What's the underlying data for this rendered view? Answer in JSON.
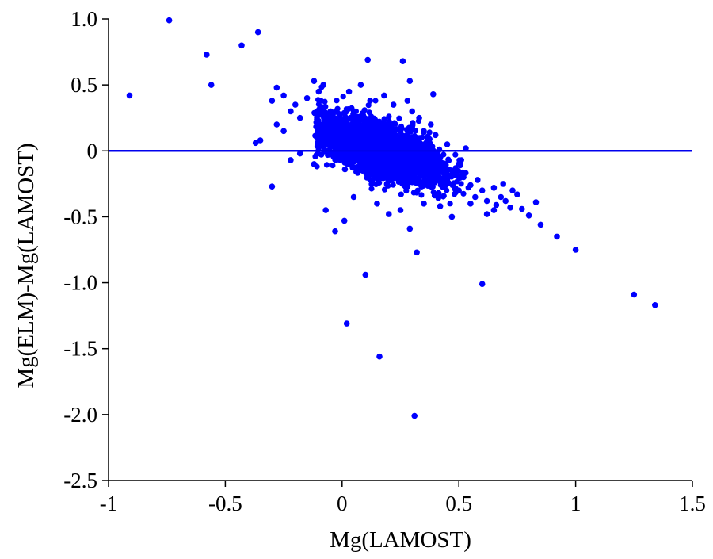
{
  "chart_data": {
    "type": "scatter",
    "title": "",
    "xlabel": "Mg(LAMOST)",
    "ylabel": "Mg(ELM)-Mg(LAMOST)",
    "xlim": [
      -1,
      1.5
    ],
    "ylim": [
      -2.5,
      1.0
    ],
    "x_ticks": [
      -1,
      -0.5,
      0,
      0.5,
      1,
      1.5
    ],
    "x_tick_labels": [
      "-1",
      "-0.5",
      "0",
      "0.5",
      "1",
      "1.5"
    ],
    "y_ticks": [
      1.0,
      0.5,
      0,
      -0.5,
      -1.0,
      -1.5,
      -2.0,
      -2.5
    ],
    "y_tick_labels": [
      "1.0",
      "0.5",
      "0",
      "-0.5",
      "-1.0",
      "-1.5",
      "-2.0",
      "-2.5"
    ],
    "grid": false,
    "legend": "none",
    "colors": {
      "points": "#0000ff",
      "reference_line": "#0000ee",
      "axes": "#000000"
    },
    "reference_line": {
      "y": 0
    },
    "cluster_note": "dense cloud of several thousand points centered near Mg(LAMOST) 0.1–0.3, residual trending from about +0.1 at x=0 to about -0.2 at x=0.5",
    "points": [
      [
        -0.91,
        0.42
      ],
      [
        -0.74,
        0.99
      ],
      [
        -0.58,
        0.73
      ],
      [
        -0.56,
        0.5
      ],
      [
        -0.43,
        0.8
      ],
      [
        -0.36,
        0.9
      ],
      [
        -0.3,
        -0.27
      ],
      [
        -0.37,
        0.06
      ],
      [
        -0.35,
        0.08
      ],
      [
        -0.28,
        0.48
      ],
      [
        -0.25,
        0.42
      ],
      [
        -0.22,
        0.3
      ],
      [
        -0.3,
        0.38
      ],
      [
        -0.28,
        0.2
      ],
      [
        -0.25,
        0.15
      ],
      [
        -0.2,
        0.35
      ],
      [
        -0.18,
        0.25
      ],
      [
        -0.15,
        0.4
      ],
      [
        -0.12,
        0.53
      ],
      [
        -0.1,
        0.45
      ],
      [
        -0.08,
        0.5
      ],
      [
        -0.22,
        -0.07
      ],
      [
        -0.18,
        -0.02
      ],
      [
        -0.12,
        -0.1
      ],
      [
        -0.07,
        -0.45
      ],
      [
        -0.03,
        -0.61
      ],
      [
        0.01,
        -0.53
      ],
      [
        0.02,
        -1.31
      ],
      [
        0.1,
        -0.94
      ],
      [
        0.16,
        -1.56
      ],
      [
        0.31,
        -2.01
      ],
      [
        0.32,
        -0.77
      ],
      [
        0.6,
        -1.01
      ],
      [
        0.11,
        0.69
      ],
      [
        0.26,
        0.68
      ],
      [
        0.29,
        0.53
      ],
      [
        0.39,
        0.43
      ],
      [
        0.08,
        0.5
      ],
      [
        0.03,
        0.45
      ],
      [
        0.05,
        -0.35
      ],
      [
        0.15,
        -0.4
      ],
      [
        0.2,
        -0.48
      ],
      [
        0.25,
        -0.45
      ],
      [
        0.29,
        -0.59
      ],
      [
        0.35,
        -0.4
      ],
      [
        0.42,
        -0.42
      ],
      [
        0.47,
        -0.5
      ],
      [
        0.55,
        -0.4
      ],
      [
        0.62,
        -0.48
      ],
      [
        0.65,
        -0.45
      ],
      [
        0.7,
        -0.38
      ],
      [
        0.72,
        -0.43
      ],
      [
        0.75,
        -0.33
      ],
      [
        0.77,
        -0.44
      ],
      [
        0.8,
        -0.49
      ],
      [
        0.83,
        -0.39
      ],
      [
        0.85,
        -0.56
      ],
      [
        0.92,
        -0.65
      ],
      [
        1.0,
        -0.75
      ],
      [
        1.25,
        -1.09
      ],
      [
        1.34,
        -1.17
      ],
      [
        0.6,
        -0.3
      ],
      [
        0.65,
        -0.28
      ],
      [
        0.68,
        -0.35
      ],
      [
        0.58,
        -0.22
      ],
      [
        0.55,
        -0.26
      ],
      [
        0.52,
        -0.2
      ],
      [
        0.5,
        -0.3
      ],
      [
        0.48,
        -0.15
      ],
      [
        0.45,
        -0.22
      ],
      [
        0.62,
        -0.38
      ],
      [
        0.66,
        -0.41
      ],
      [
        0.57,
        -0.35
      ],
      [
        0.73,
        -0.3
      ],
      [
        0.69,
        -0.25
      ],
      [
        0.4,
        0.12
      ],
      [
        0.45,
        0.05
      ],
      [
        0.38,
        0.2
      ],
      [
        0.33,
        0.25
      ],
      [
        0.3,
        0.3
      ],
      [
        0.22,
        0.35
      ],
      [
        0.18,
        0.42
      ],
      [
        0.12,
        0.38
      ],
      [
        0.05,
        0.3
      ],
      [
        -0.05,
        0.3
      ],
      [
        0.28,
        0.38
      ],
      [
        0.35,
        0.15
      ],
      [
        0.42,
        -0.05
      ],
      [
        0.5,
        -0.1
      ],
      [
        0.53,
        0.02
      ]
    ]
  }
}
